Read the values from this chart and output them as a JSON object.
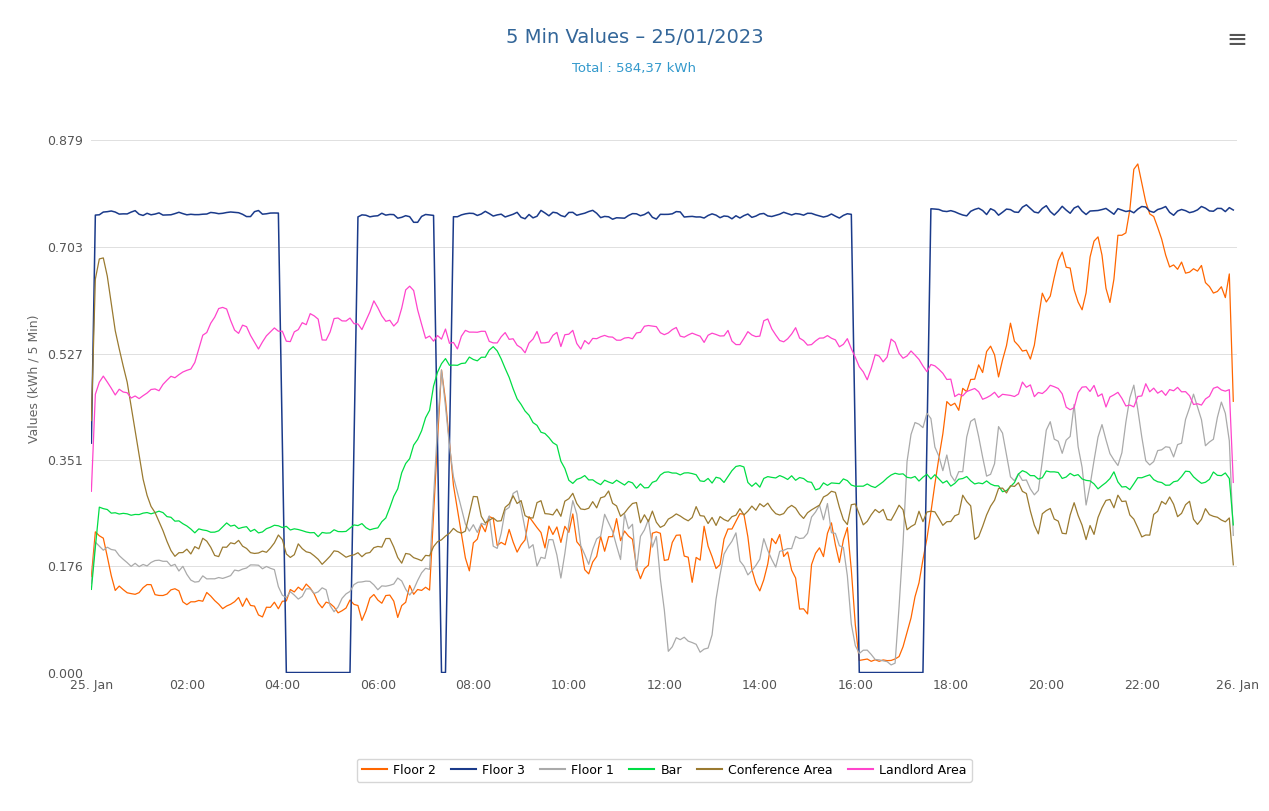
{
  "title": "5 Min Values – 25/01/2023",
  "subtitle": "Total : 584,37 kWh",
  "ylabel": "Values (kWh / 5 Min)",
  "title_color": "#336699",
  "subtitle_color": "#3399cc",
  "ylabel_color": "#666666",
  "background_color": "#ffffff",
  "grid_color": "#e0e0e0",
  "ylim": [
    0,
    0.97
  ],
  "yticks": [
    0,
    0.176,
    0.351,
    0.527,
    0.703,
    0.879
  ],
  "xtick_labels": [
    "25. Jan",
    "02:00",
    "04:00",
    "06:00",
    "08:00",
    "10:00",
    "12:00",
    "14:00",
    "16:00",
    "18:00",
    "20:00",
    "22:00",
    "26. Jan"
  ],
  "n_points": 288,
  "series": {
    "Floor2": {
      "color": "#FF6600",
      "label": "Floor 2"
    },
    "Floor3": {
      "color": "#1a3a8a",
      "label": "Floor 3"
    },
    "Floor1": {
      "color": "#aaaaaa",
      "label": "Floor 1"
    },
    "Bar": {
      "color": "#00dd44",
      "label": "Bar"
    },
    "ConferenceArea": {
      "color": "#9a7a30",
      "label": "Conference Area"
    },
    "LandlordArea": {
      "color": "#ff44cc",
      "label": "Landlord Area"
    }
  },
  "legend_border_color": "#cccccc",
  "legend_bg": "#ffffff"
}
